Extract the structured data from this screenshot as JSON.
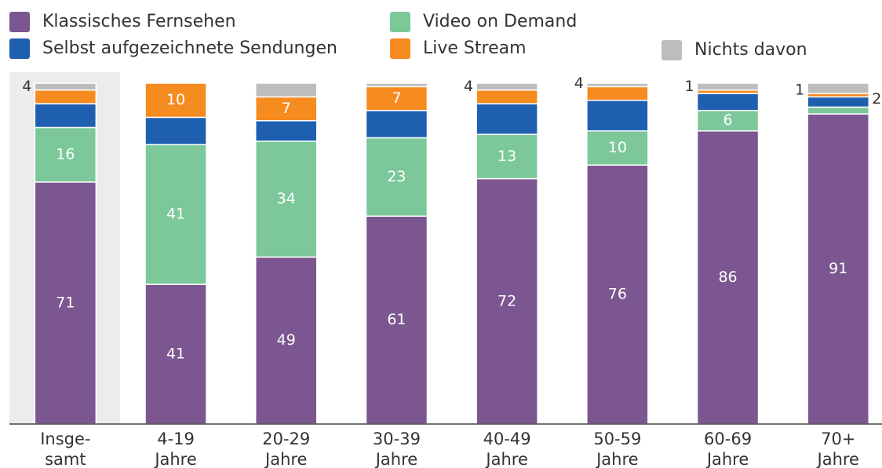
{
  "chart_data": {
    "type": "stacked_bar",
    "categories": [
      "Insge-\nsamt",
      "4-19\nJahre",
      "20-29\nJahre",
      "30-39\nJahre",
      "40-49\nJahre",
      "50-59\nJahre",
      "60-69\nJahre",
      "70+\nJahre"
    ],
    "ylim": [
      0,
      100
    ],
    "series": [
      {
        "name": "Klassisches Fernsehen",
        "color": "#7b5690",
        "values": [
          71,
          41,
          49,
          61,
          72,
          76,
          86,
          91
        ],
        "value_labels": [
          "71",
          "41",
          "49",
          "61",
          "72",
          "76",
          "86",
          "91"
        ]
      },
      {
        "name": "Video on Demand",
        "color": "#7cc89a",
        "values": [
          16,
          41,
          34,
          23,
          13,
          10,
          6,
          2
        ],
        "value_labels": [
          "16",
          "41",
          "34",
          "23",
          "13",
          "10",
          "6",
          "2"
        ]
      },
      {
        "name": "Selbst aufgezeichnete Sendungen",
        "color": "#1f5fb0",
        "values": [
          7,
          8,
          6,
          8,
          9,
          9,
          5,
          3
        ],
        "value_labels": [
          null,
          null,
          null,
          null,
          null,
          null,
          null,
          null
        ]
      },
      {
        "name": "Live Stream",
        "color": "#f68b1f",
        "values": [
          4,
          10,
          7,
          7,
          4,
          4,
          1,
          1
        ],
        "value_labels": [
          "4",
          "10",
          "7",
          "7",
          "4",
          "4",
          "1",
          "1"
        ]
      },
      {
        "name": "Nichts davon",
        "color": "#bdbdbd",
        "values": [
          2,
          0,
          4,
          1,
          2,
          1,
          2,
          3
        ],
        "value_labels": [
          null,
          null,
          null,
          null,
          null,
          null,
          null,
          null
        ]
      }
    ]
  }
}
